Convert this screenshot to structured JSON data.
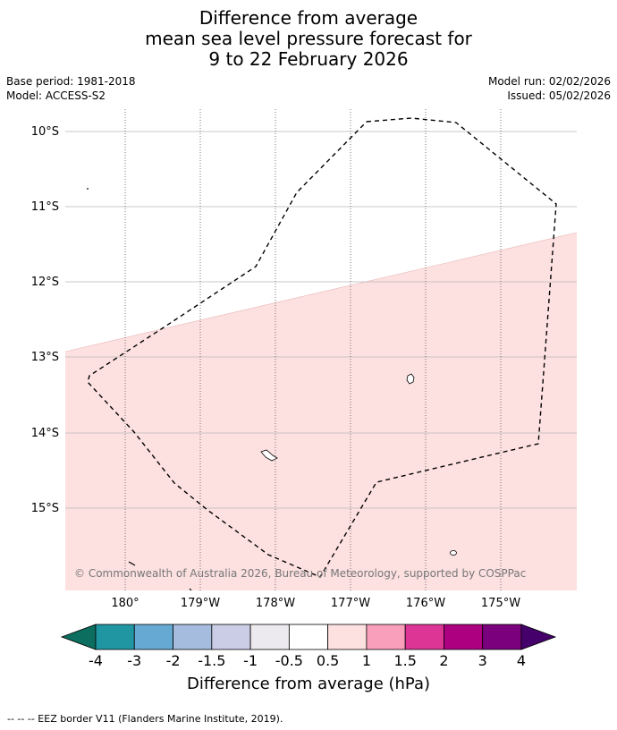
{
  "title": {
    "line1": "Difference from average",
    "line2": "mean sea level pressure forecast for",
    "line3": "9 to 22 February 2026"
  },
  "meta": {
    "base_period": "Base period: 1981-2018",
    "model": "Model: ACCESS-S2",
    "model_run": "Model run: 02/02/2026",
    "issued": "Issued: 05/02/2026"
  },
  "map": {
    "lat_labels": [
      "10°S",
      "11°S",
      "12°S",
      "13°S",
      "14°S",
      "15°S"
    ],
    "lon_labels": [
      "180°",
      "179°W",
      "178°W",
      "177°W",
      "176°W",
      "175°W"
    ],
    "copyright": "© Commonwealth of Australia 2026, Bureau of Meteorology, supported by COSPPac",
    "shaded_category": "0.5 to 1"
  },
  "colorbar": {
    "label": "Difference from average (hPa)",
    "ticks": [
      "-4",
      "-3",
      "-2",
      "-1.5",
      "-1",
      "-0.5",
      "0.5",
      "1",
      "1.5",
      "2",
      "3",
      "4"
    ],
    "colors": [
      "#0b6e5f",
      "#2196a3",
      "#66aad4",
      "#a6bcdf",
      "#cbcde6",
      "#eceaee",
      "#ffffff",
      "#fde0e0",
      "#f99fbb",
      "#dc3596",
      "#ad0080",
      "#7a007d",
      "#45006b"
    ]
  },
  "footnote": "-- -- -- EEZ border V11 (Flanders Marine Institute, 2019)."
}
